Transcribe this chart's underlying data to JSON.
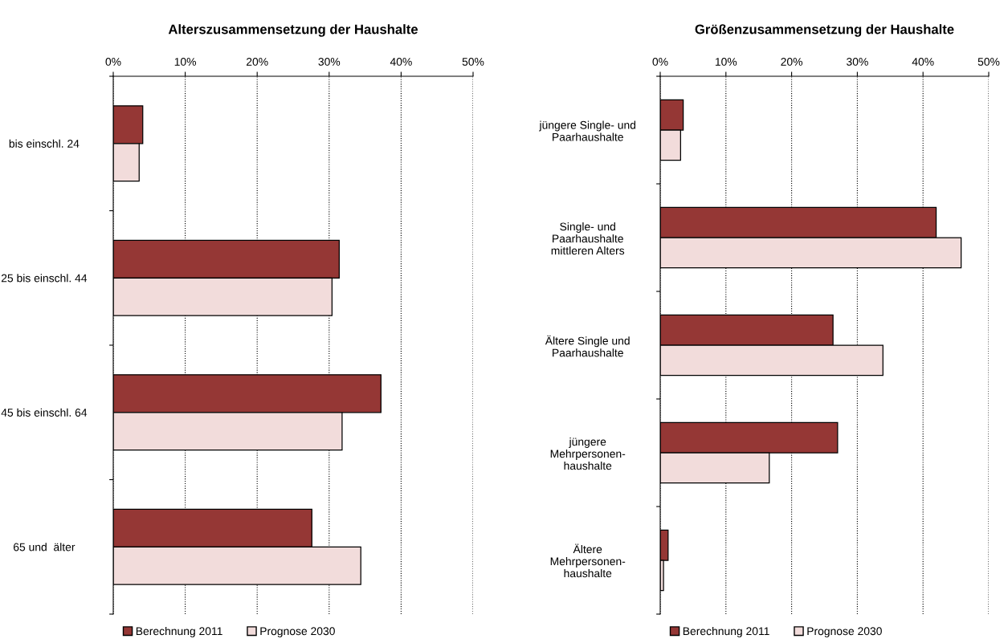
{
  "chart_data": [
    {
      "type": "bar",
      "orientation": "horizontal",
      "title": "Alterszusammensetzung der Haushalte",
      "categories": [
        "bis einschl. 24",
        "25 bis einschl. 44",
        "45 bis einschl. 64",
        "65 und  älter"
      ],
      "series": [
        {
          "name": "Berechnung 2011",
          "color": "#953735",
          "values": [
            4.1,
            31.4,
            37.2,
            27.6
          ]
        },
        {
          "name": "Prognose 2030",
          "color": "#f2dcdb",
          "values": [
            3.6,
            30.4,
            31.8,
            34.4
          ]
        }
      ],
      "xlim": [
        0,
        50
      ],
      "xticks": [
        {
          "value": 0,
          "label": "0%"
        },
        {
          "value": 10,
          "label": "10%"
        },
        {
          "value": 20,
          "label": "20%"
        },
        {
          "value": 30,
          "label": "30%"
        },
        {
          "value": 40,
          "label": "40%"
        },
        {
          "value": 50,
          "label": "50%"
        }
      ],
      "grid": "x",
      "legend": "bottom",
      "line_style": "dotted"
    },
    {
      "type": "bar",
      "orientation": "horizontal",
      "title": "Größenzusammensetzung der Haushalte",
      "categories": [
        "jüngere Single- und\nPaarhaushalte",
        "Single- und\nPaarhaushalte\nmittleren Alters",
        "Ältere Single und\nPaarhaushalte",
        "jüngere\nMehrpersonen-\nhaushalte",
        "Ältere\nMehrpersonen-\nhaushalte"
      ],
      "series": [
        {
          "name": "Berechnung 2011",
          "color": "#953735",
          "values": [
            3.5,
            42.0,
            26.3,
            27.0,
            1.2
          ]
        },
        {
          "name": "Prognose 2030",
          "color": "#f2dcdb",
          "values": [
            3.1,
            45.8,
            33.9,
            16.6,
            0.5
          ]
        }
      ],
      "xlim": [
        0,
        50
      ],
      "xticks": [
        {
          "value": 0,
          "label": "0%"
        },
        {
          "value": 10,
          "label": "10%"
        },
        {
          "value": 20,
          "label": "20%"
        },
        {
          "value": 30,
          "label": "30%"
        },
        {
          "value": 40,
          "label": "40%"
        },
        {
          "value": 50,
          "label": "50%"
        }
      ],
      "grid": "x",
      "legend": "bottom",
      "line_style": "dotted"
    }
  ]
}
